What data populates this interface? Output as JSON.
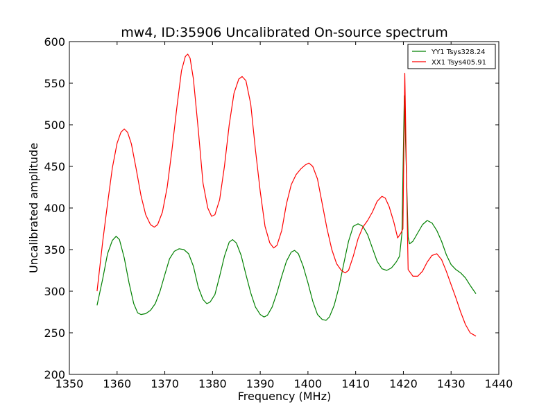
{
  "chart_data": {
    "type": "line",
    "title": "mw4, ID:35906 Uncalibrated On-source spectrum",
    "xlabel": "Frequency (MHz)",
    "ylabel": "Uncalibrated amplitude",
    "xlim": [
      1350,
      1440
    ],
    "ylim": [
      200,
      600
    ],
    "x_ticks": [
      "1350",
      "1360",
      "1370",
      "1380",
      "1390",
      "1400",
      "1410",
      "1420",
      "1430",
      "1440"
    ],
    "y_ticks": [
      "200",
      "250",
      "300",
      "350",
      "400",
      "450",
      "500",
      "550",
      "600"
    ],
    "grid": false,
    "legend_position": "top-right",
    "series": [
      {
        "name": "YY1 Tsys328.24",
        "color": "#008000",
        "points": [
          [
            1355.8,
            283
          ],
          [
            1357.0,
            315
          ],
          [
            1358.0,
            345
          ],
          [
            1359.0,
            361
          ],
          [
            1359.8,
            366
          ],
          [
            1360.5,
            362
          ],
          [
            1361.5,
            340
          ],
          [
            1362.5,
            310
          ],
          [
            1363.5,
            285
          ],
          [
            1364.3,
            274
          ],
          [
            1365.0,
            272
          ],
          [
            1366.0,
            273
          ],
          [
            1367.0,
            277
          ],
          [
            1368.0,
            285
          ],
          [
            1369.0,
            300
          ],
          [
            1370.0,
            320
          ],
          [
            1371.0,
            339
          ],
          [
            1372.0,
            348
          ],
          [
            1373.0,
            351
          ],
          [
            1374.0,
            350
          ],
          [
            1375.0,
            345
          ],
          [
            1376.0,
            330
          ],
          [
            1377.0,
            305
          ],
          [
            1378.0,
            290
          ],
          [
            1378.8,
            285
          ],
          [
            1379.5,
            287
          ],
          [
            1380.5,
            296
          ],
          [
            1381.5,
            318
          ],
          [
            1382.5,
            342
          ],
          [
            1383.5,
            359
          ],
          [
            1384.2,
            362
          ],
          [
            1385.0,
            358
          ],
          [
            1386.0,
            343
          ],
          [
            1387.0,
            320
          ],
          [
            1388.0,
            298
          ],
          [
            1389.0,
            281
          ],
          [
            1390.0,
            272
          ],
          [
            1390.8,
            269
          ],
          [
            1391.5,
            271
          ],
          [
            1392.5,
            281
          ],
          [
            1393.5,
            298
          ],
          [
            1394.5,
            318
          ],
          [
            1395.5,
            336
          ],
          [
            1396.5,
            347
          ],
          [
            1397.2,
            349
          ],
          [
            1398.0,
            345
          ],
          [
            1399.0,
            330
          ],
          [
            1400.0,
            310
          ],
          [
            1401.0,
            288
          ],
          [
            1402.0,
            272
          ],
          [
            1403.0,
            266
          ],
          [
            1403.8,
            265
          ],
          [
            1404.5,
            269
          ],
          [
            1405.5,
            283
          ],
          [
            1406.5,
            305
          ],
          [
            1407.5,
            333
          ],
          [
            1408.5,
            360
          ],
          [
            1409.5,
            378
          ],
          [
            1410.5,
            381
          ],
          [
            1411.5,
            378
          ],
          [
            1412.5,
            368
          ],
          [
            1413.5,
            352
          ],
          [
            1414.5,
            336
          ],
          [
            1415.5,
            327
          ],
          [
            1416.5,
            325
          ],
          [
            1417.5,
            328
          ],
          [
            1418.5,
            335
          ],
          [
            1419.2,
            342
          ],
          [
            1419.7,
            370
          ],
          [
            1420.2,
            535
          ],
          [
            1420.6,
            450
          ],
          [
            1421.0,
            365
          ],
          [
            1421.3,
            357
          ],
          [
            1422.0,
            360
          ],
          [
            1423.0,
            370
          ],
          [
            1424.0,
            380
          ],
          [
            1425.0,
            385
          ],
          [
            1426.0,
            382
          ],
          [
            1427.0,
            373
          ],
          [
            1428.0,
            360
          ],
          [
            1429.0,
            344
          ],
          [
            1430.0,
            332
          ],
          [
            1431.0,
            326
          ],
          [
            1432.0,
            322
          ],
          [
            1433.0,
            316
          ],
          [
            1434.0,
            307
          ],
          [
            1435.2,
            297
          ]
        ]
      },
      {
        "name": "XX1 Tsys405.91",
        "color": "#ff0000",
        "points": [
          [
            1355.8,
            300
          ],
          [
            1357.0,
            360
          ],
          [
            1358.0,
            405
          ],
          [
            1359.0,
            448
          ],
          [
            1360.0,
            478
          ],
          [
            1360.8,
            491
          ],
          [
            1361.5,
            495
          ],
          [
            1362.2,
            491
          ],
          [
            1363.0,
            477
          ],
          [
            1364.0,
            447
          ],
          [
            1365.0,
            415
          ],
          [
            1366.0,
            392
          ],
          [
            1367.0,
            380
          ],
          [
            1367.8,
            377
          ],
          [
            1368.5,
            380
          ],
          [
            1369.5,
            395
          ],
          [
            1370.5,
            425
          ],
          [
            1371.5,
            470
          ],
          [
            1372.5,
            520
          ],
          [
            1373.5,
            565
          ],
          [
            1374.3,
            582
          ],
          [
            1374.8,
            585
          ],
          [
            1375.3,
            580
          ],
          [
            1376.0,
            555
          ],
          [
            1377.0,
            495
          ],
          [
            1378.0,
            430
          ],
          [
            1379.0,
            400
          ],
          [
            1379.8,
            390
          ],
          [
            1380.5,
            392
          ],
          [
            1381.5,
            410
          ],
          [
            1382.5,
            450
          ],
          [
            1383.5,
            500
          ],
          [
            1384.5,
            538
          ],
          [
            1385.5,
            555
          ],
          [
            1386.2,
            558
          ],
          [
            1387.0,
            553
          ],
          [
            1388.0,
            525
          ],
          [
            1389.0,
            470
          ],
          [
            1390.0,
            420
          ],
          [
            1391.0,
            378
          ],
          [
            1392.0,
            358
          ],
          [
            1392.8,
            352
          ],
          [
            1393.5,
            355
          ],
          [
            1394.5,
            373
          ],
          [
            1395.5,
            405
          ],
          [
            1396.5,
            428
          ],
          [
            1397.5,
            440
          ],
          [
            1398.5,
            447
          ],
          [
            1399.5,
            452
          ],
          [
            1400.2,
            454
          ],
          [
            1401.0,
            450
          ],
          [
            1402.0,
            435
          ],
          [
            1403.0,
            405
          ],
          [
            1404.0,
            375
          ],
          [
            1405.0,
            350
          ],
          [
            1406.0,
            333
          ],
          [
            1407.0,
            325
          ],
          [
            1407.8,
            322
          ],
          [
            1408.5,
            325
          ],
          [
            1409.5,
            342
          ],
          [
            1410.5,
            363
          ],
          [
            1411.5,
            377
          ],
          [
            1412.5,
            385
          ],
          [
            1413.5,
            395
          ],
          [
            1414.5,
            408
          ],
          [
            1415.5,
            414
          ],
          [
            1416.2,
            412
          ],
          [
            1417.0,
            402
          ],
          [
            1418.0,
            383
          ],
          [
            1418.8,
            364
          ],
          [
            1419.5,
            370
          ],
          [
            1419.9,
            375
          ],
          [
            1420.3,
            562
          ],
          [
            1420.7,
            420
          ],
          [
            1421.0,
            326
          ],
          [
            1422.0,
            318
          ],
          [
            1423.0,
            318
          ],
          [
            1424.0,
            324
          ],
          [
            1425.0,
            335
          ],
          [
            1426.0,
            343
          ],
          [
            1427.0,
            345
          ],
          [
            1428.0,
            338
          ],
          [
            1429.0,
            324
          ],
          [
            1430.0,
            308
          ],
          [
            1431.0,
            292
          ],
          [
            1432.0,
            275
          ],
          [
            1433.0,
            260
          ],
          [
            1434.0,
            250
          ],
          [
            1435.2,
            246
          ]
        ]
      }
    ]
  }
}
